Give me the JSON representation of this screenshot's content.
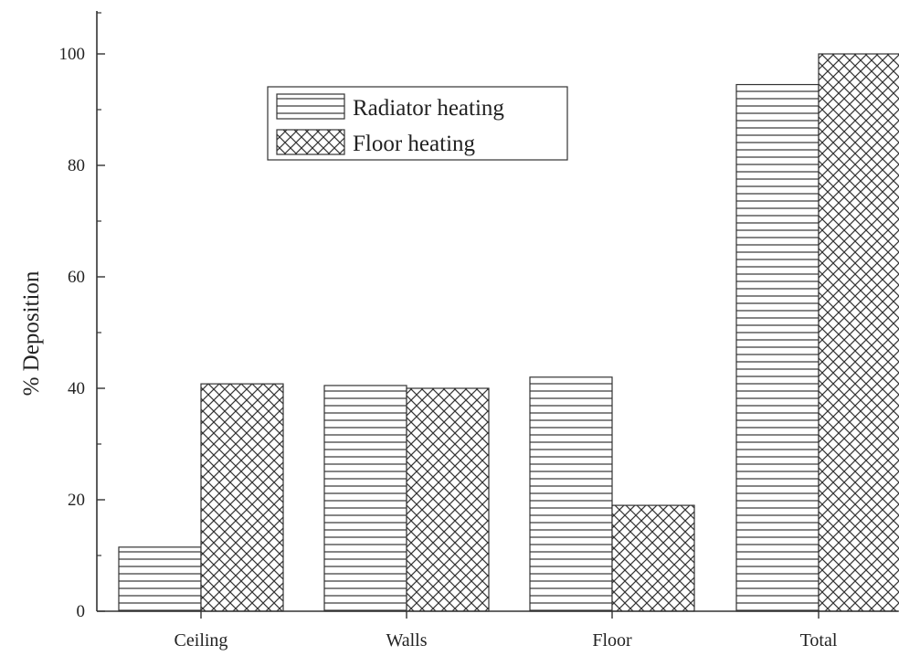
{
  "chart_data": {
    "type": "bar",
    "title": "",
    "xlabel": "",
    "ylabel": "% Deposition",
    "categories": [
      "Ceiling",
      "Walls",
      "Floor",
      "Total"
    ],
    "series": [
      {
        "name": "Radiator heating",
        "pattern": "horizontal-lines",
        "values": [
          11.5,
          40.5,
          42,
          94.5
        ]
      },
      {
        "name": "Floor heating",
        "pattern": "crosshatch",
        "values": [
          40.8,
          40,
          19,
          100
        ]
      }
    ],
    "ylim": [
      0,
      100
    ],
    "yticks": [
      0,
      20,
      40,
      60,
      80,
      100
    ],
    "grid": false,
    "legend_position": "top-center",
    "colors": {
      "ink": "#333333",
      "fill": "#ffffff"
    }
  }
}
